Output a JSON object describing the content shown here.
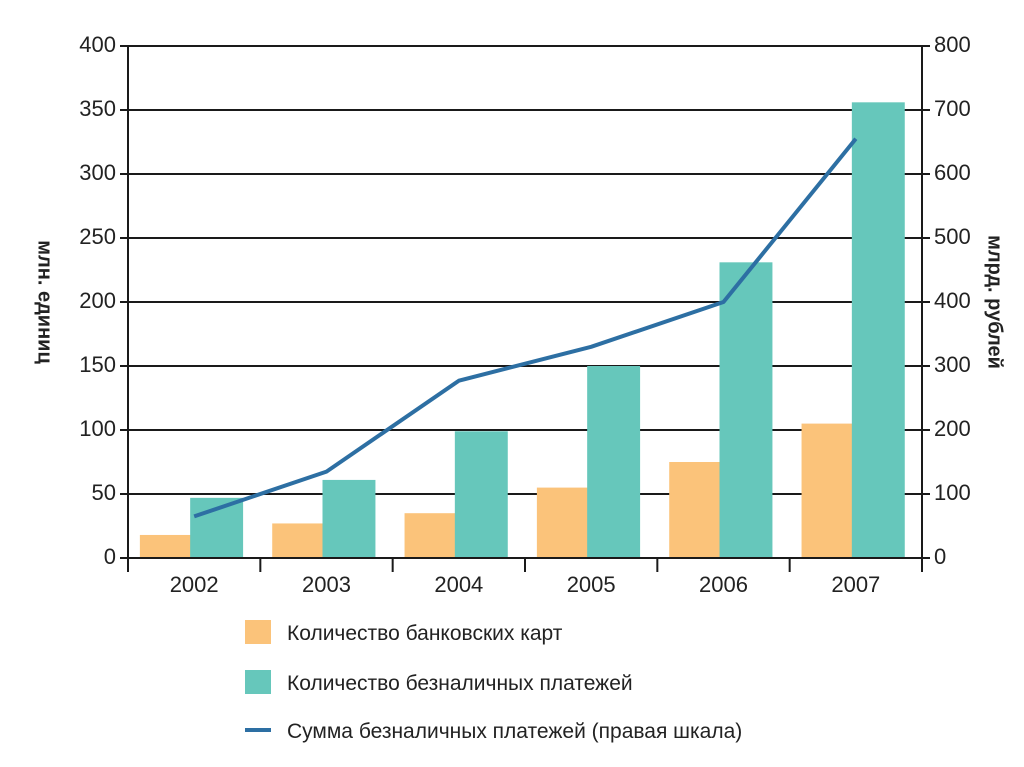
{
  "chart_data": {
    "type": "bar",
    "categories": [
      "2002",
      "2003",
      "2004",
      "2005",
      "2006",
      "2007"
    ],
    "series": [
      {
        "name": "Количество банковских карт",
        "kind": "bar",
        "axis": "left",
        "color": "#fbc37a",
        "values": [
          18,
          27,
          35,
          55,
          75,
          105
        ]
      },
      {
        "name": "Количество безналичных платежей",
        "kind": "bar",
        "axis": "left",
        "color": "#66c7bb",
        "values": [
          47,
          61,
          99,
          150,
          231,
          356
        ]
      },
      {
        "name": "Сумма безналичных платежей (правая шкала)",
        "kind": "line",
        "axis": "right",
        "color": "#2d6fa3",
        "values": [
          65,
          135,
          277,
          330,
          400,
          655
        ]
      }
    ],
    "ylabel": "млн. единиц",
    "y2label": "млрд. рублей",
    "ylim": [
      0,
      400
    ],
    "y2lim": [
      0,
      800
    ],
    "yticks": [
      "0",
      "50",
      "100",
      "150",
      "200",
      "250",
      "300",
      "350",
      "400"
    ],
    "y2ticks": [
      "0",
      "100",
      "200",
      "300",
      "400",
      "500",
      "600",
      "700",
      "800"
    ],
    "grid": true,
    "legend_position": "bottom"
  }
}
